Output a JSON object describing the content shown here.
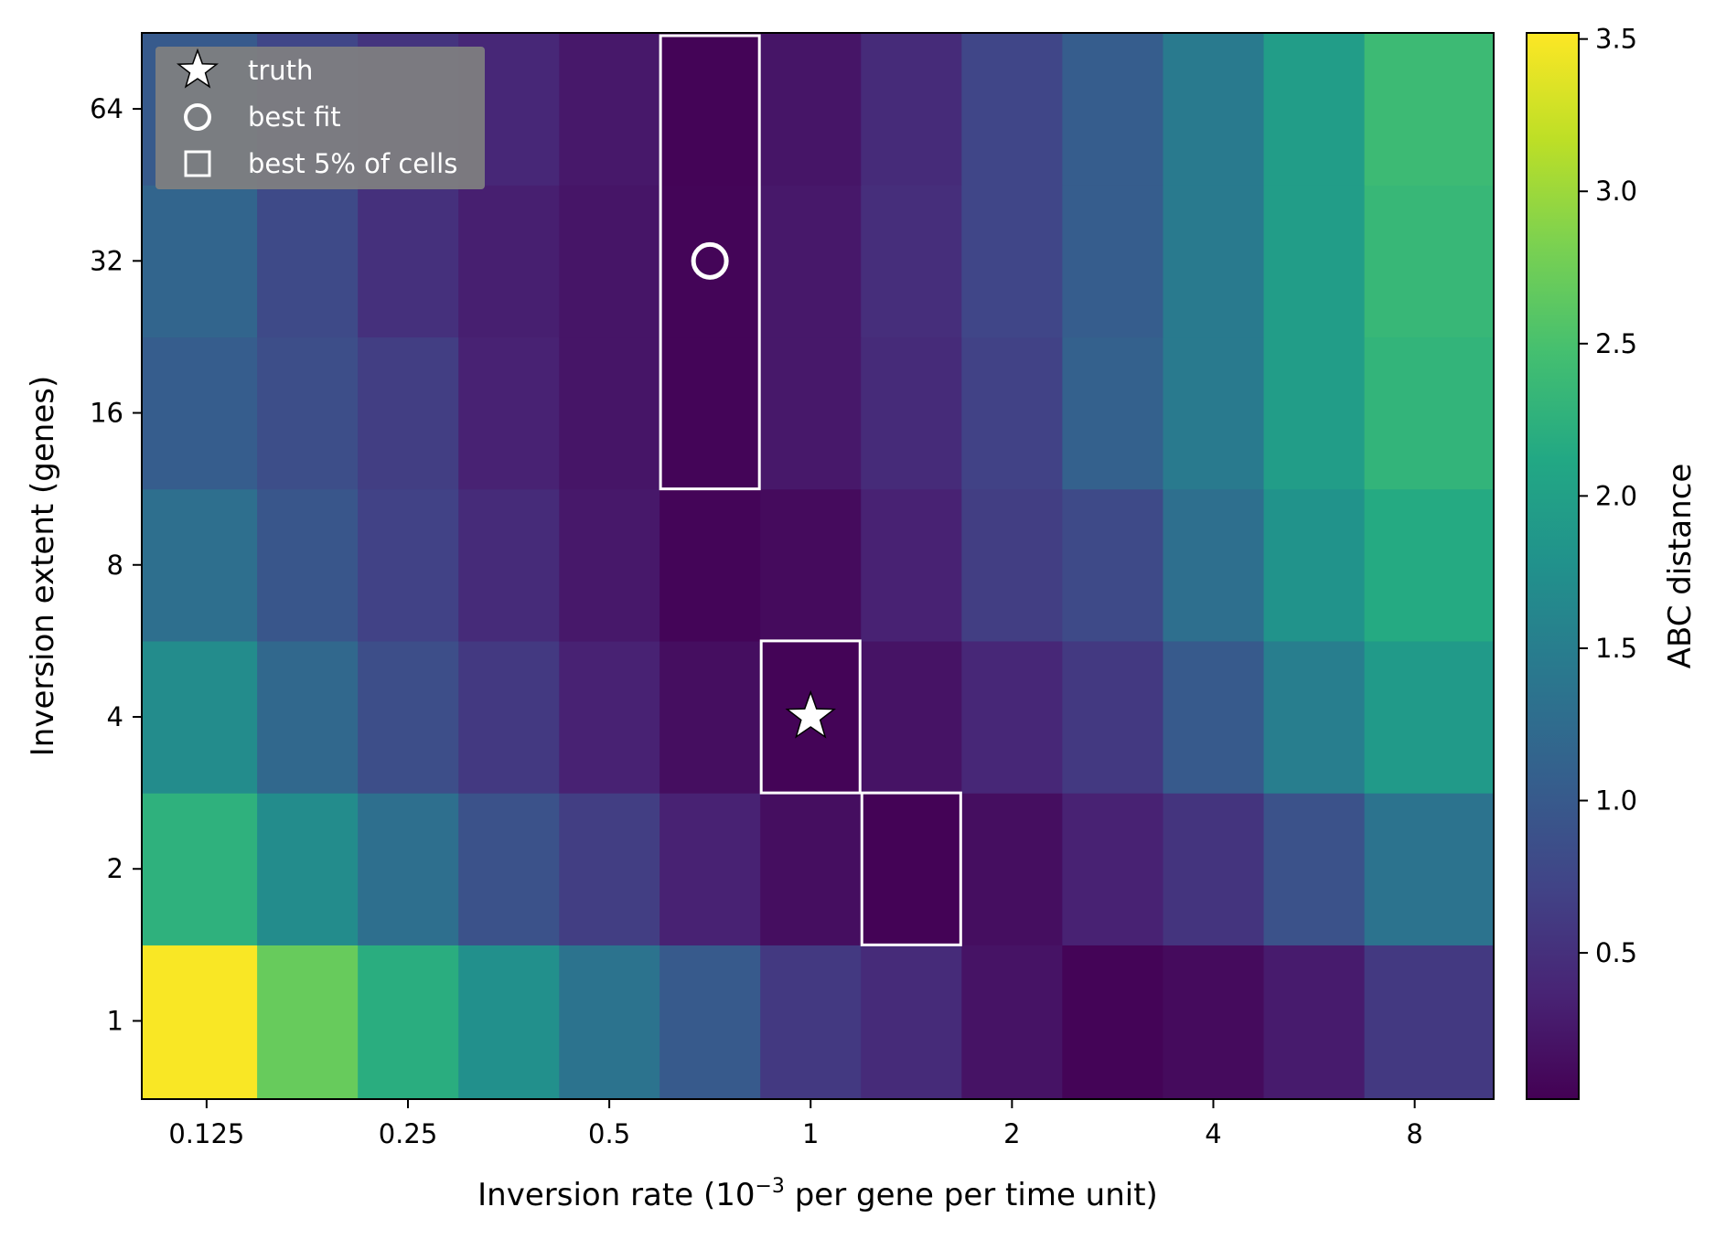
{
  "chart_data": {
    "type": "heatmap",
    "title": "",
    "xlabel_main": "Inversion rate (10",
    "xlabel_sup": "−3",
    "xlabel_tail": " per gene per time unit)",
    "ylabel": "Inversion extent (genes)",
    "colorbar_label": "ABC distance",
    "x_scale": "log2",
    "y_scale": "log2",
    "x_range": [
      0.1,
      10.5
    ],
    "y_range": [
      0.7,
      90.5
    ],
    "x_ticks": [
      0.125,
      0.25,
      0.5,
      1,
      2,
      4,
      8
    ],
    "x_tick_labels": [
      "0.125",
      "0.25",
      "0.5",
      "1",
      "2",
      "4",
      "8"
    ],
    "y_ticks": [
      1,
      2,
      4,
      8,
      16,
      32,
      64
    ],
    "y_tick_labels": [
      "1",
      "2",
      "4",
      "8",
      "16",
      "32",
      "64"
    ],
    "x_centers": [
      0.125,
      0.177,
      0.25,
      0.354,
      0.5,
      0.707,
      1,
      1.414,
      2,
      2.828,
      4,
      5.657,
      8
    ],
    "y_centers": [
      1,
      2,
      4,
      8,
      16,
      32,
      64
    ],
    "values": [
      [
        3.5,
        2.7,
        2.2,
        1.75,
        1.35,
        1.0,
        0.6,
        0.45,
        0.2,
        0.05,
        0.12,
        0.28,
        0.6
      ],
      [
        2.25,
        1.7,
        1.3,
        0.9,
        0.65,
        0.35,
        0.15,
        0.04,
        0.15,
        0.35,
        0.55,
        0.9,
        1.35
      ],
      [
        1.7,
        1.2,
        0.85,
        0.6,
        0.35,
        0.15,
        0.05,
        0.2,
        0.4,
        0.6,
        1.0,
        1.5,
        1.9
      ],
      [
        1.3,
        0.95,
        0.7,
        0.45,
        0.25,
        0.06,
        0.12,
        0.35,
        0.65,
        0.8,
        1.3,
        1.8,
        2.15
      ],
      [
        1.05,
        0.85,
        0.65,
        0.35,
        0.22,
        0.06,
        0.25,
        0.45,
        0.7,
        1.1,
        1.45,
        1.95,
        2.3
      ],
      [
        1.15,
        0.8,
        0.5,
        0.32,
        0.22,
        0.06,
        0.25,
        0.48,
        0.75,
        1.05,
        1.45,
        1.95,
        2.35
      ],
      [
        1.0,
        0.75,
        0.55,
        0.4,
        0.25,
        0.05,
        0.22,
        0.45,
        0.75,
        1.05,
        1.45,
        1.95,
        2.4
      ]
    ],
    "colormap": "viridis",
    "colorbar_range": [
      0.02,
      3.52
    ],
    "colorbar_ticks": [
      0.5,
      1.0,
      1.5,
      2.0,
      2.5,
      3.0,
      3.5
    ],
    "colorbar_tick_labels": [
      "0.5",
      "1.0",
      "1.5",
      "2.0",
      "2.5",
      "3.0",
      "3.5"
    ],
    "truth": {
      "x": 1,
      "y": 4
    },
    "best_fit": {
      "x": 0.707,
      "y": 32
    },
    "best_cells": [
      {
        "x": 0.707,
        "y_from": 16,
        "y_to": 64
      },
      {
        "x": 1,
        "y_from": 4,
        "y_to": 4
      },
      {
        "x": 1.414,
        "y_from": 2,
        "y_to": 2
      }
    ],
    "legend": {
      "position": "top-left",
      "entries": [
        {
          "marker": "star-icon",
          "label": "truth"
        },
        {
          "marker": "circle-icon",
          "label": "best fit"
        },
        {
          "marker": "square-icon",
          "label": "best 5% of cells"
        }
      ]
    },
    "grid": false
  }
}
